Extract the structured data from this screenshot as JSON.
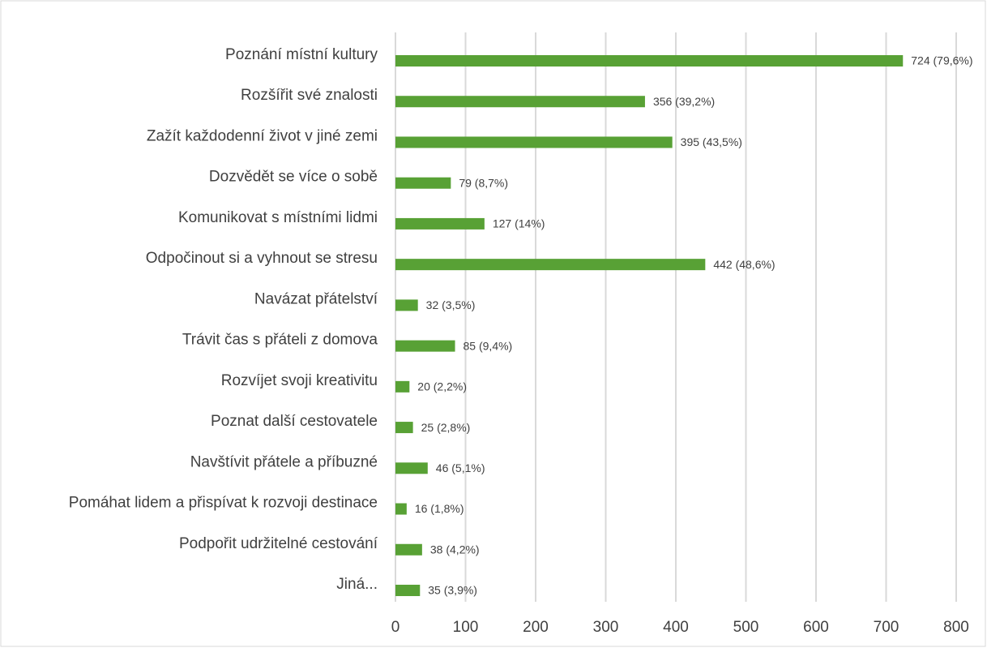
{
  "chart_data": {
    "type": "bar",
    "orientation": "horizontal",
    "categories": [
      "Poznání místní kultury",
      "Rozšířit své znalosti",
      "Zažít každodenní život v jiné zemi",
      "Dozvědět se více o sobě",
      "Komunikovat s místními lidmi",
      "Odpočinout si a vyhnout se stresu",
      "Navázat přátelství",
      "Trávit čas s přáteli z domova",
      "Rozvíjet svoji kreativitu",
      "Poznat další cestovatele",
      "Navštívit přátele a příbuzné",
      "Pomáhat lidem a přispívat k rozvoji destinace",
      "Podpořit udržitelné cestování",
      "Jiná..."
    ],
    "values": [
      724,
      356,
      395,
      79,
      127,
      442,
      32,
      85,
      20,
      25,
      46,
      16,
      38,
      35
    ],
    "value_labels": [
      "724 (79,6%)",
      "356 (39,2%)",
      "395 (43,5%)",
      "79 (8,7%)",
      "127 (14%)",
      "442 (48,6%)",
      "32 (3,5%)",
      "85 (9,4%)",
      "20 (2,2%)",
      "25 (2,8%)",
      "46 (5,1%)",
      "16 (1,8%)",
      "38 (4,2%)",
      "35 (3,9%)"
    ],
    "color": "#58a135",
    "xlim": [
      0,
      800
    ],
    "xticks": [
      0,
      100,
      200,
      300,
      400,
      500,
      600,
      700,
      800
    ],
    "grid": true
  }
}
